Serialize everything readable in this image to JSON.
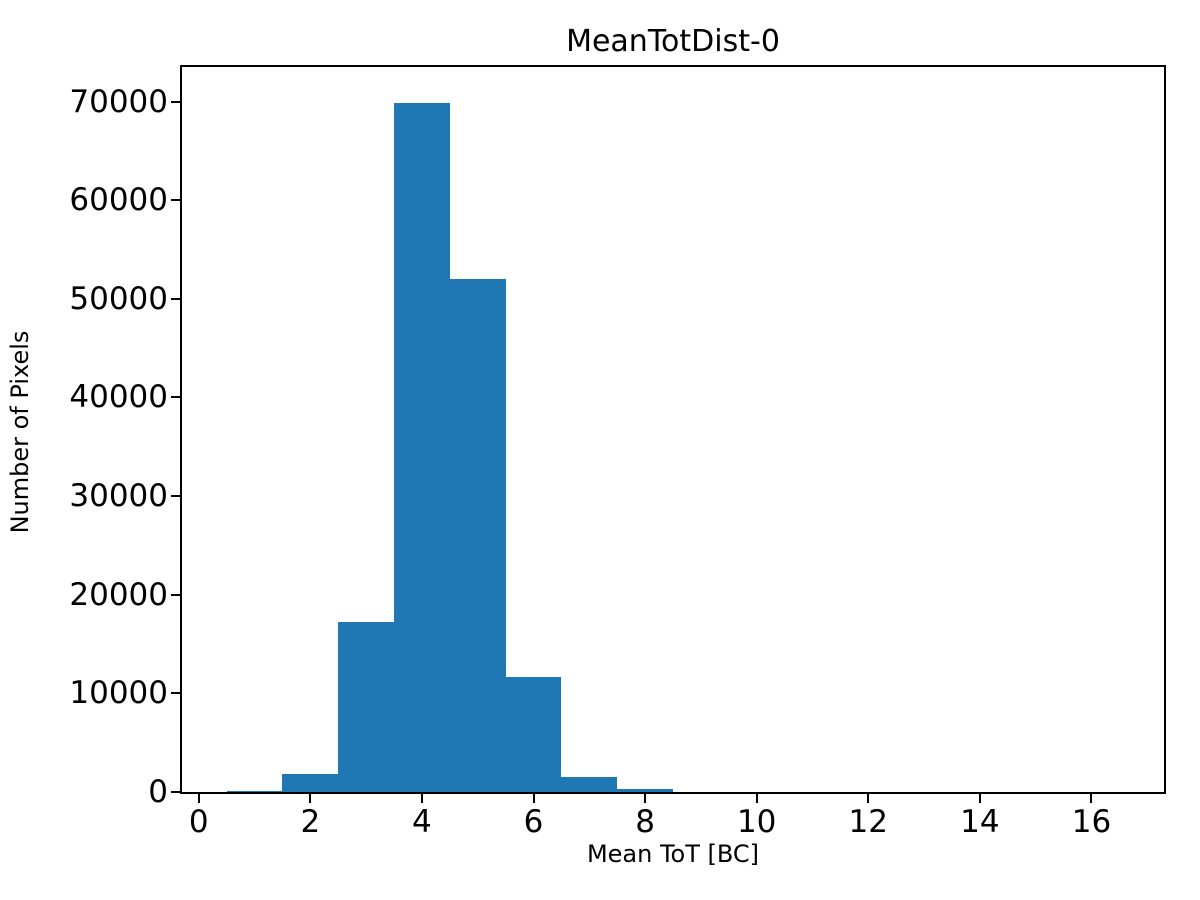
{
  "chart_data": {
    "type": "bar",
    "subtype": "histogram",
    "title": "MeanTotDist-0",
    "xlabel": "Mean ToT [BC]",
    "ylabel": "Number of Pixels",
    "bar_color": "#1f77b4",
    "background_color": "#ffffff",
    "spine_color": "#000000",
    "bin_edges": [
      0.5,
      1.5,
      2.5,
      3.5,
      4.5,
      5.5,
      6.5,
      7.5,
      8.5
    ],
    "bin_centers": [
      1,
      2,
      3,
      4,
      5,
      6,
      7,
      8
    ],
    "counts": [
      120,
      1800,
      17200,
      69900,
      52000,
      11650,
      1500,
      330
    ],
    "xlim": [
      -0.3,
      17.3
    ],
    "ylim": [
      0,
      73500
    ],
    "xticks": [
      0,
      2,
      4,
      6,
      8,
      10,
      12,
      14,
      16
    ],
    "yticks": [
      0,
      10000,
      20000,
      30000,
      40000,
      50000,
      60000,
      70000
    ],
    "grid": false,
    "legend": null
  }
}
